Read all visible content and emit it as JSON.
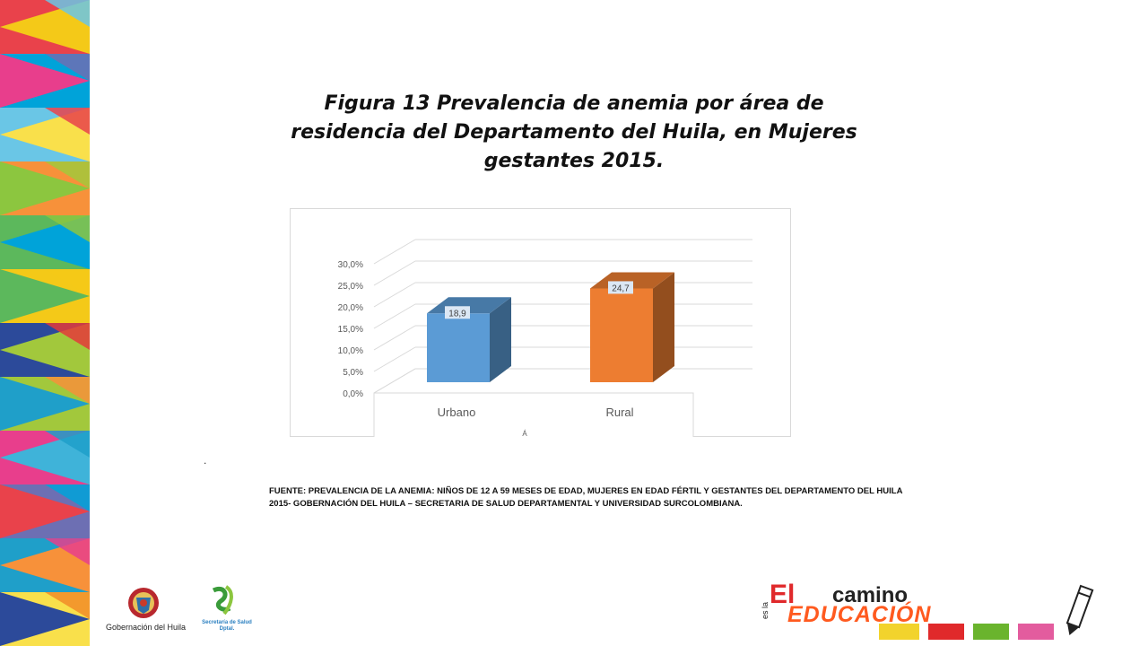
{
  "slide": {
    "title": "Figura 13 Prevalencia de anemia por área de residencia del Departamento del Huila, en Mujeres gestantes 2015.",
    "dot": ".",
    "source_line1": "FUENTE: PREVALENCIA  DE LA ANEMIA: NIÑOS DE 12 A 59 MESES DE EDAD, MUJERES EN EDAD FÉRTIL Y GESTANTES DEL DEPARTAMENTO DEL HUILA",
    "source_line2": "2015- GOBERNACIÓN DEL HUILA – SECRETARIA DE SALUD DEPARTAMENTAL Y UNIVERSIDAD SURCOLOMBIANA."
  },
  "footer": {
    "gobernacion_label": "Gobernación del Huila",
    "salud_label": "Secretaría de Salud Dptal.",
    "brand_el": "El",
    "brand_camino": "camino",
    "brand_esla": "es la",
    "brand_educacion": "EDUCACIÓN",
    "colors": {
      "brand_red": "#e0292b",
      "brand_orange": "#ff5a1f"
    }
  },
  "chart_data": {
    "type": "bar",
    "style": "3d-column",
    "categories": [
      "Urbano",
      "Rural"
    ],
    "values": [
      18.9,
      24.7
    ],
    "data_labels": [
      "18,9",
      "24,7"
    ],
    "colors": [
      "#5b9bd5",
      "#ed7d31"
    ],
    "y_ticks": [
      "0,0%",
      "5,0%",
      "10,0%",
      "15,0%",
      "20,0%",
      "25,0%",
      "30,0%"
    ],
    "ylim": [
      0,
      30
    ],
    "grid": true,
    "xlabel_fragment": "Á"
  }
}
